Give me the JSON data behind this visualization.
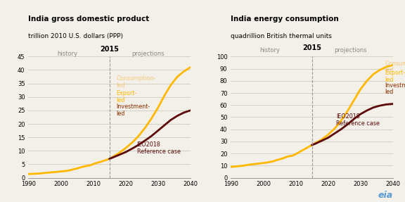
{
  "chart1_title": "India gross domestic product",
  "chart1_subtitle": "trillion 2010 U.S. dollars (PPP)",
  "chart2_title": "India energy consumption",
  "chart2_subtitle": "quadrillion British thermal units",
  "vline_year": 2015,
  "history_label": "history",
  "projections_label": "projections",
  "year_label_2015": "2015",
  "gdp_years_hist": [
    1990,
    1991,
    1992,
    1993,
    1994,
    1995,
    1996,
    1997,
    1998,
    1999,
    2000,
    2001,
    2002,
    2003,
    2004,
    2005,
    2006,
    2007,
    2008,
    2009,
    2010,
    2011,
    2012,
    2013,
    2014,
    2015
  ],
  "gdp_ref_hist": [
    1.4,
    1.45,
    1.5,
    1.55,
    1.65,
    1.78,
    1.9,
    2.0,
    2.1,
    2.2,
    2.35,
    2.45,
    2.6,
    2.85,
    3.15,
    3.45,
    3.8,
    4.15,
    4.4,
    4.6,
    5.05,
    5.5,
    5.8,
    6.2,
    6.6,
    7.0
  ],
  "gdp_years_proj": [
    2015,
    2016,
    2018,
    2020,
    2022,
    2024,
    2026,
    2028,
    2030,
    2032,
    2034,
    2036,
    2038,
    2040
  ],
  "gdp_ref_proj": [
    7.0,
    7.5,
    8.5,
    9.5,
    10.8,
    12.2,
    13.8,
    15.5,
    17.5,
    19.5,
    21.5,
    23.0,
    24.2,
    25.0
  ],
  "gdp_high_proj": [
    7.0,
    7.7,
    9.2,
    11.0,
    13.0,
    15.5,
    18.5,
    22.0,
    26.0,
    30.5,
    34.5,
    37.5,
    39.5,
    41.0
  ],
  "energy_years_hist": [
    1990,
    1991,
    1992,
    1993,
    1994,
    1995,
    1996,
    1997,
    1998,
    1999,
    2000,
    2001,
    2002,
    2003,
    2004,
    2005,
    2006,
    2007,
    2008,
    2009,
    2010,
    2011,
    2012,
    2013,
    2014,
    2015
  ],
  "energy_ref_hist": [
    9.0,
    9.2,
    9.5,
    9.7,
    10.0,
    10.5,
    11.0,
    11.2,
    11.5,
    11.8,
    12.2,
    12.5,
    13.0,
    13.5,
    14.5,
    15.2,
    16.0,
    17.0,
    17.8,
    18.2,
    19.5,
    21.0,
    22.5,
    24.0,
    25.5,
    27.0
  ],
  "energy_years_proj": [
    2015,
    2016,
    2018,
    2020,
    2022,
    2024,
    2026,
    2028,
    2030,
    2032,
    2034,
    2036,
    2038,
    2040
  ],
  "energy_ref_proj": [
    27.0,
    28.0,
    30.5,
    33.0,
    36.5,
    40.0,
    44.0,
    48.5,
    52.5,
    55.5,
    58.0,
    59.5,
    60.5,
    61.0
  ],
  "energy_high_proj": [
    27.0,
    28.5,
    31.5,
    35.5,
    40.5,
    47.0,
    55.0,
    64.0,
    73.0,
    80.0,
    85.5,
    89.0,
    91.5,
    93.0
  ],
  "color_gold": "#FFB800",
  "color_consumption": "#F5C97A",
  "color_export": "#FFB800",
  "color_investment": "#8B3000",
  "color_ref_line": "#5C0A0A",
  "gdp_ylim": [
    0,
    45
  ],
  "gdp_yticks": [
    0,
    5,
    10,
    15,
    20,
    25,
    30,
    35,
    40,
    45
  ],
  "energy_ylim": [
    0,
    100
  ],
  "energy_yticks": [
    0,
    10,
    20,
    30,
    40,
    50,
    60,
    70,
    80,
    90,
    100
  ],
  "xlim": [
    1990,
    2040
  ],
  "xticks": [
    1990,
    2000,
    2010,
    2020,
    2030,
    2040
  ],
  "bg_color": "#F2F0E8",
  "eia_logo_color": "#5B9BD5"
}
